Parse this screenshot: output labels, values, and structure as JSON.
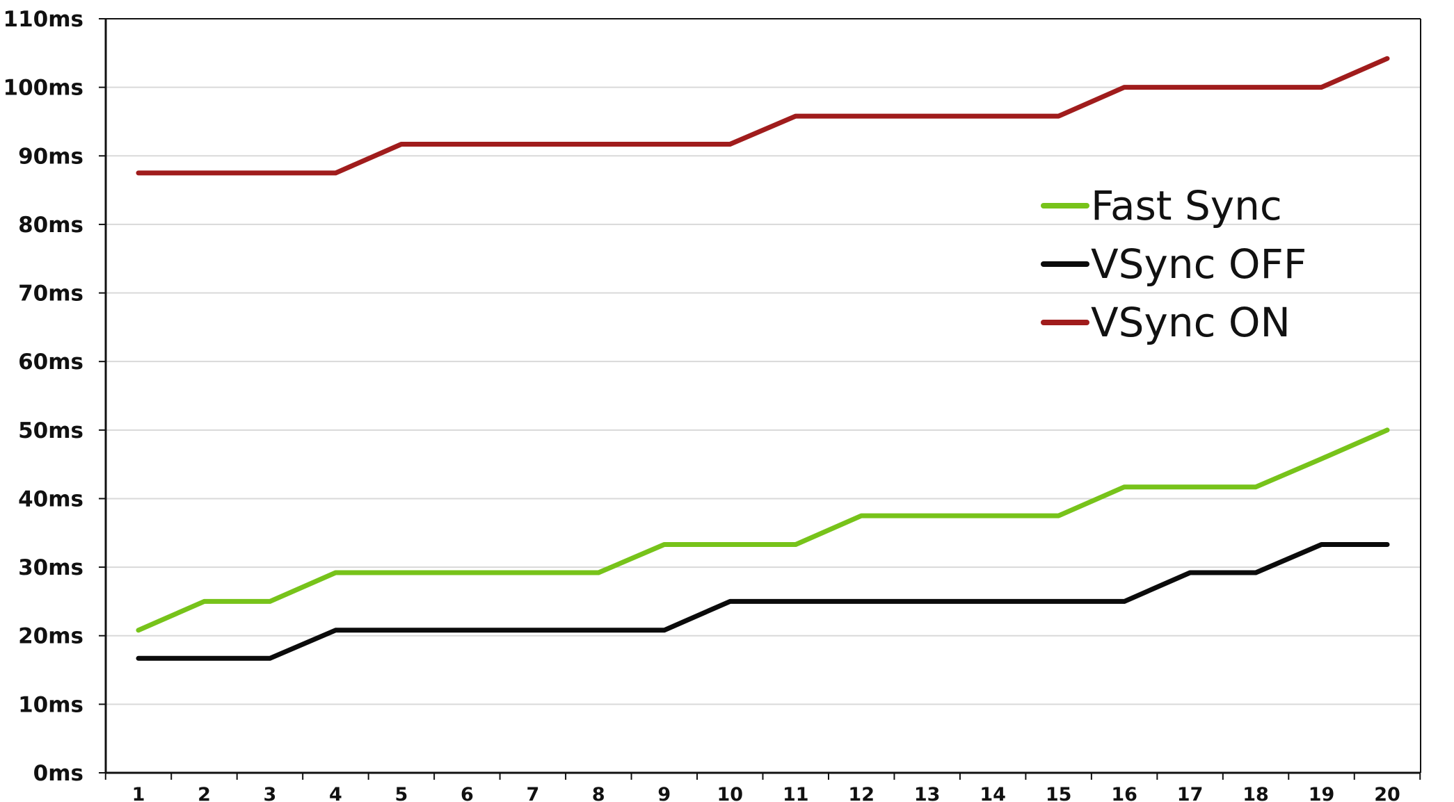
{
  "chart_data": {
    "type": "line",
    "title": "",
    "xlabel": "",
    "ylabel": "",
    "categories": [
      "1",
      "2",
      "3",
      "4",
      "5",
      "6",
      "7",
      "8",
      "9",
      "10",
      "11",
      "12",
      "13",
      "14",
      "15",
      "16",
      "17",
      "18",
      "19",
      "20"
    ],
    "y_ticks": [
      "0ms",
      "10ms",
      "20ms",
      "30ms",
      "40ms",
      "50ms",
      "60ms",
      "70ms",
      "80ms",
      "90ms",
      "100ms",
      "110ms"
    ],
    "ylim": [
      0,
      110
    ],
    "grid": true,
    "legend_position": "right",
    "series": [
      {
        "name": "Fast Sync",
        "color": "#77c31a",
        "values": [
          20.8,
          25.0,
          25.0,
          29.2,
          29.2,
          29.2,
          29.2,
          29.2,
          33.3,
          33.3,
          33.3,
          37.5,
          37.5,
          37.5,
          37.5,
          41.7,
          41.7,
          41.7,
          45.8,
          50.0
        ]
      },
      {
        "name": "VSync OFF",
        "color": "#0b0b0b",
        "values": [
          16.7,
          16.7,
          16.7,
          20.8,
          20.8,
          20.8,
          20.8,
          20.8,
          20.8,
          25.0,
          25.0,
          25.0,
          25.0,
          25.0,
          25.0,
          25.0,
          29.2,
          29.2,
          33.3,
          33.3
        ]
      },
      {
        "name": "VSync ON",
        "color": "#a01c1c",
        "values": [
          87.5,
          87.5,
          87.5,
          87.5,
          91.7,
          91.7,
          91.7,
          91.7,
          91.7,
          91.7,
          95.8,
          95.8,
          95.8,
          95.8,
          95.8,
          100.0,
          100.0,
          100.0,
          100.0,
          104.2
        ]
      }
    ]
  }
}
